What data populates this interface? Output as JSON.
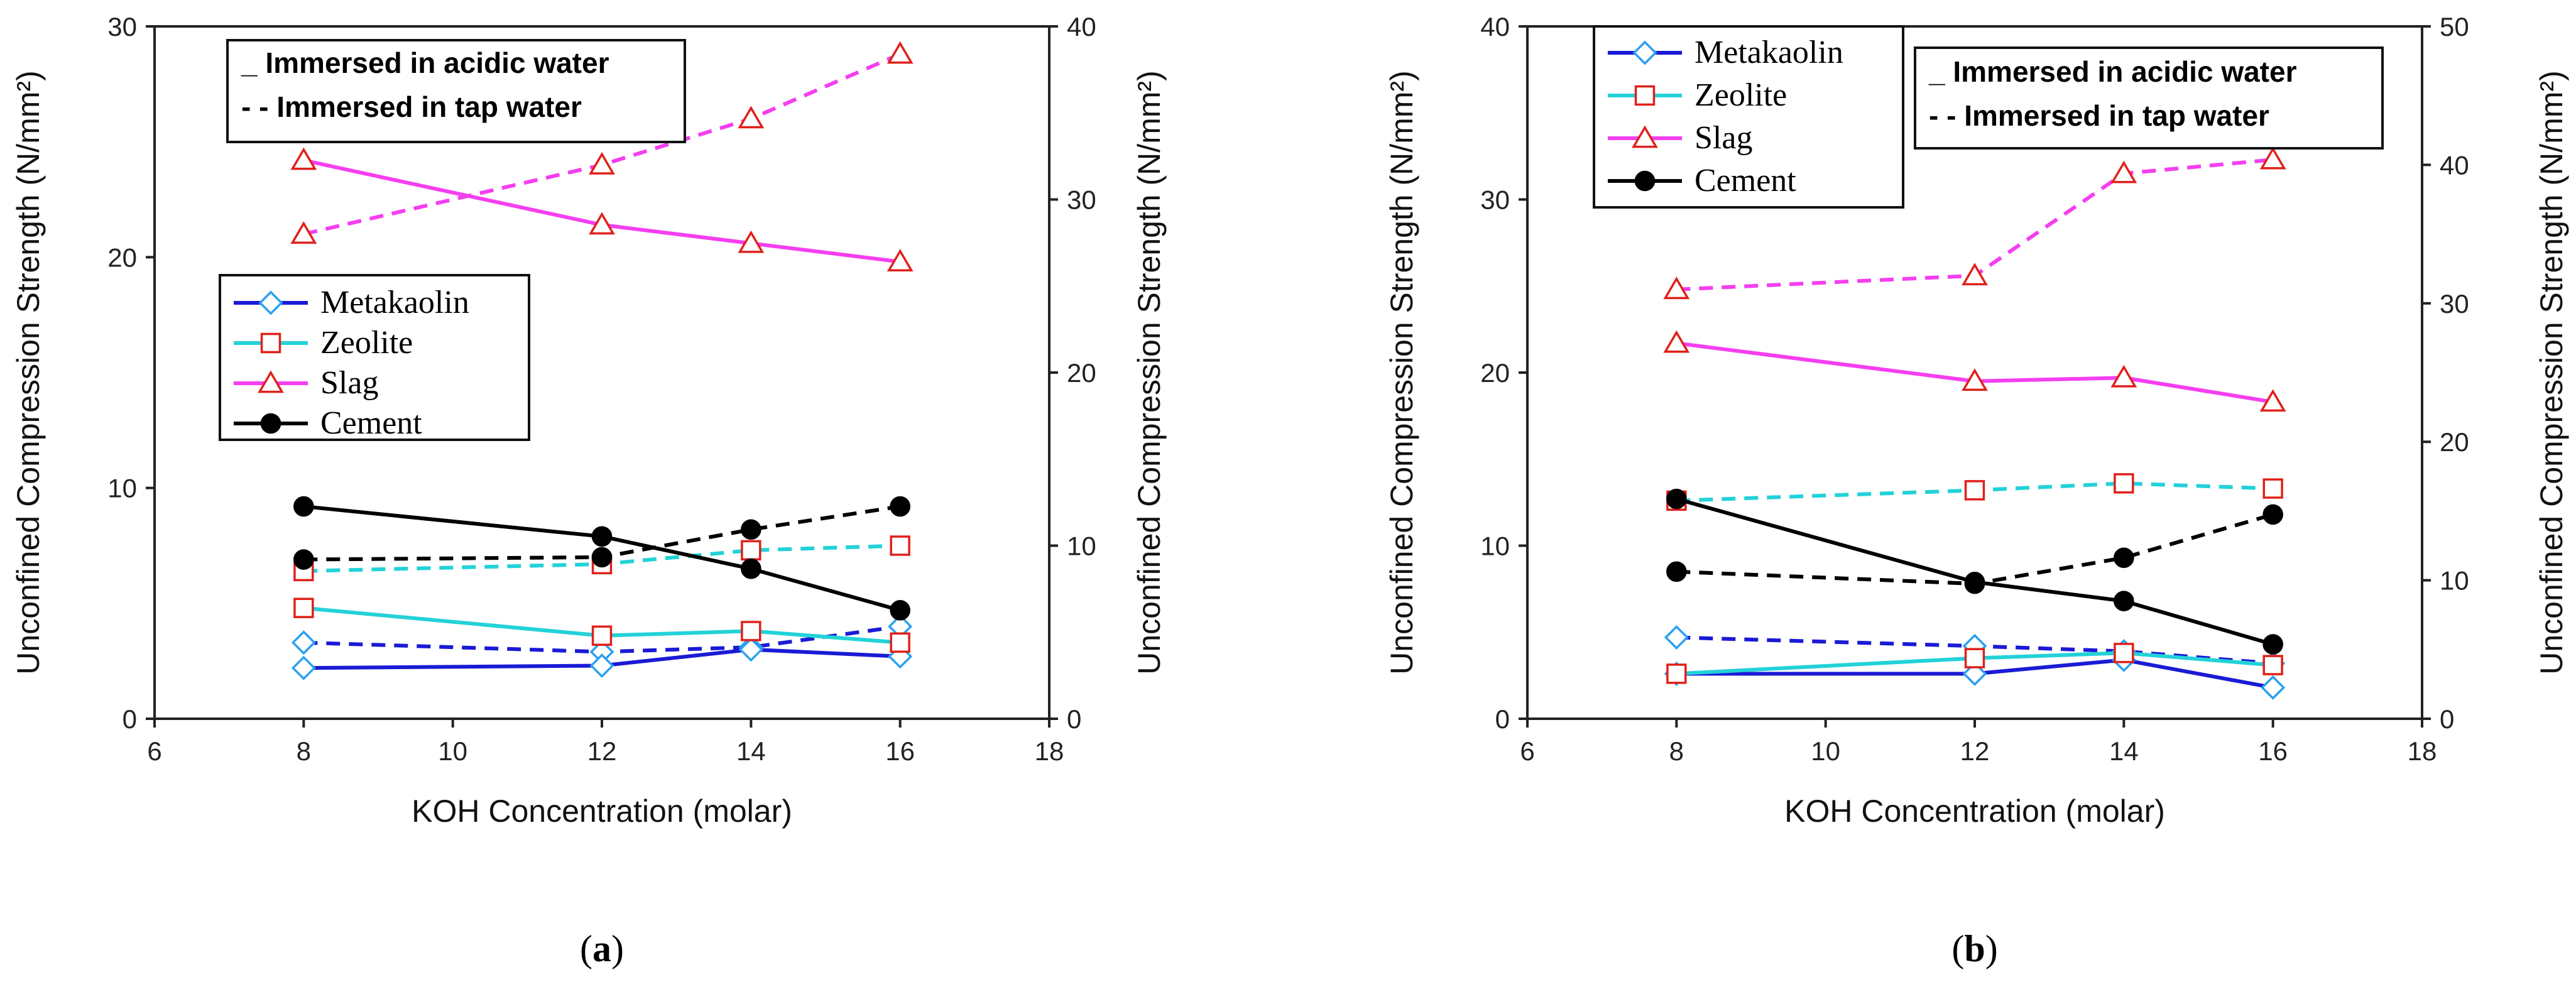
{
  "colors": {
    "Metakaolin": "#1a1ad6",
    "Metakaolin_marker": "#2aa0f0",
    "Zeolite": "#22d2d8",
    "Zeolite_marker": "#e0201a",
    "Slag": "#f53ef0",
    "Slag_marker": "#e0201a",
    "Cement": "#000000",
    "Cement_marker": "#000000"
  },
  "chart_data": [
    {
      "panel_label": "a",
      "type": "line",
      "xlabel": "KOH Concentration (molar)",
      "ylabel_left": "Unconfined Compression Strength (N/mm²)",
      "ylabel_right": "Unconfined Compression Strength (N/mm²)",
      "xlim": [
        6,
        18
      ],
      "x_ticks": [
        "6",
        "8",
        "10",
        "12",
        "14",
        "16",
        "18"
      ],
      "ylim_left": [
        0,
        30
      ],
      "y_ticks_left": [
        "0",
        "10",
        "20",
        "30"
      ],
      "ylim_right": [
        0,
        40
      ],
      "y_ticks_right": [
        "0",
        "10",
        "20",
        "30",
        "40"
      ],
      "x": [
        8,
        12,
        14,
        16
      ],
      "legend_series": [
        "Metakaolin",
        "Zeolite",
        "Slag",
        "Cement"
      ],
      "legend_placement": "center-left",
      "note_lines": [
        {
          "style": "solid",
          "text": "_ Immersed in acidic water"
        },
        {
          "style": "dashed",
          "text": "- - Immersed in tap water"
        }
      ],
      "note_placement": "top-left",
      "series": [
        {
          "name": "Metakaolin",
          "condition": "acidic water",
          "line": "solid",
          "axis": "left",
          "values": [
            2.2,
            2.3,
            3.0,
            2.7
          ]
        },
        {
          "name": "Metakaolin",
          "condition": "tap water",
          "line": "dashed",
          "axis": "left",
          "values": [
            3.3,
            2.9,
            3.1,
            4.0
          ]
        },
        {
          "name": "Zeolite",
          "condition": "acidic water",
          "line": "solid",
          "axis": "left",
          "values": [
            4.8,
            3.6,
            3.8,
            3.3
          ]
        },
        {
          "name": "Zeolite",
          "condition": "tap water",
          "line": "dashed",
          "axis": "left",
          "values": [
            6.4,
            6.7,
            7.3,
            7.5
          ]
        },
        {
          "name": "Slag",
          "condition": "acidic water",
          "line": "solid",
          "axis": "left",
          "values": [
            24.2,
            21.4,
            20.6,
            19.8
          ]
        },
        {
          "name": "Slag",
          "condition": "tap water",
          "line": "dashed",
          "axis": "left",
          "values": [
            21.0,
            24.0,
            26.0,
            28.8
          ]
        },
        {
          "name": "Cement",
          "condition": "acidic water",
          "line": "solid",
          "axis": "left",
          "values": [
            9.2,
            7.9,
            6.5,
            4.7
          ]
        },
        {
          "name": "Cement",
          "condition": "tap water",
          "line": "dashed",
          "axis": "left",
          "values": [
            6.9,
            7.0,
            8.2,
            9.2
          ]
        }
      ]
    },
    {
      "panel_label": "b",
      "type": "line",
      "xlabel": "KOH Concentration (molar)",
      "ylabel_left": "Unconfined Compression Strength (N/mm²)",
      "ylabel_right": "Unconfined Compression Strength (N/mm²)",
      "xlim": [
        6,
        18
      ],
      "x_ticks": [
        "6",
        "8",
        "10",
        "12",
        "14",
        "16",
        "18"
      ],
      "ylim_left": [
        0,
        40
      ],
      "y_ticks_left": [
        "0",
        "10",
        "20",
        "30",
        "40"
      ],
      "ylim_right": [
        0,
        50
      ],
      "y_ticks_right": [
        "0",
        "10",
        "20",
        "30",
        "40",
        "50"
      ],
      "x": [
        8,
        12,
        14,
        16
      ],
      "legend_series": [
        "Metakaolin",
        "Zeolite",
        "Slag",
        "Cement"
      ],
      "legend_placement": "top-left",
      "note_lines": [
        {
          "style": "solid",
          "text": "_ Immersed in acidic water"
        },
        {
          "style": "dashed",
          "text": "- - Immersed in tap water"
        }
      ],
      "note_placement": "top-right",
      "series": [
        {
          "name": "Metakaolin",
          "condition": "acidic water",
          "line": "solid",
          "axis": "left",
          "values": [
            2.6,
            2.6,
            3.4,
            1.8
          ]
        },
        {
          "name": "Metakaolin",
          "condition": "tap water",
          "line": "dashed",
          "axis": "left",
          "values": [
            4.7,
            4.2,
            3.9,
            3.2
          ]
        },
        {
          "name": "Zeolite",
          "condition": "acidic water",
          "line": "solid",
          "axis": "left",
          "values": [
            2.6,
            3.5,
            3.8,
            3.1
          ]
        },
        {
          "name": "Zeolite",
          "condition": "tap water",
          "line": "dashed",
          "axis": "left",
          "values": [
            12.6,
            13.2,
            13.6,
            13.3
          ]
        },
        {
          "name": "Slag",
          "condition": "acidic water",
          "line": "solid",
          "axis": "left",
          "values": [
            21.7,
            19.5,
            19.7,
            18.3
          ]
        },
        {
          "name": "Slag",
          "condition": "tap water",
          "line": "dashed",
          "axis": "left",
          "values": [
            24.8,
            25.6,
            31.5,
            32.3
          ]
        },
        {
          "name": "Cement",
          "condition": "acidic water",
          "line": "solid",
          "axis": "left",
          "values": [
            12.7,
            7.9,
            6.8,
            4.3
          ]
        },
        {
          "name": "Cement",
          "condition": "tap water",
          "line": "dashed",
          "axis": "left",
          "values": [
            8.5,
            7.8,
            9.3,
            11.8
          ]
        }
      ]
    }
  ]
}
